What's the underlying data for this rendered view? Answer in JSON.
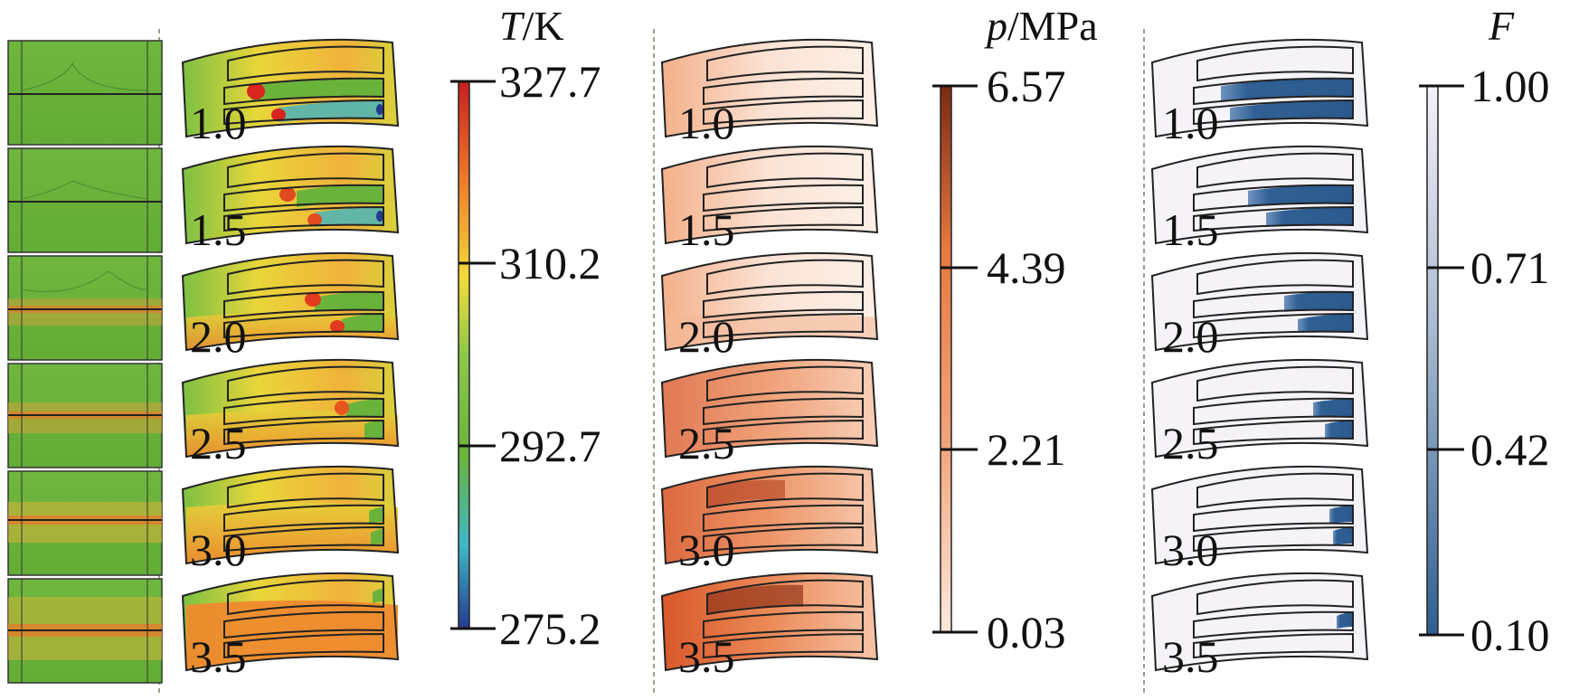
{
  "figure": {
    "divider_color": "#8a7a6a",
    "left_strip": {
      "name": "cross-section temperature contours",
      "count": 6,
      "field_color": "#6ab33a",
      "band_color": "#d9822b"
    },
    "temperature": {
      "title_var": "T",
      "title_unit": "/K",
      "ticks": [
        "327.7",
        "310.2",
        "292.7",
        "275.2"
      ],
      "colors": [
        "#c81e1e",
        "#ee7a2a",
        "#f2dc3a",
        "#6ab33a",
        "#3fb6c6",
        "#243a8e"
      ],
      "panel_labels": [
        "1.0",
        "1.5",
        "2.0",
        "2.5",
        "3.0",
        "3.5"
      ]
    },
    "pressure": {
      "title_var": "p",
      "title_unit": "/MPa",
      "ticks": [
        "6.57",
        "4.39",
        "2.21",
        "0.03"
      ],
      "colors": [
        "#7b2a14",
        "#e7783f",
        "#fde9dc"
      ],
      "panel_labels": [
        "1.0",
        "1.5",
        "2.0",
        "2.5",
        "3.0",
        "3.5"
      ]
    },
    "fraction": {
      "title_var": "F",
      "title_unit": "",
      "ticks": [
        "1.00",
        "0.71",
        "0.42",
        "0.10"
      ],
      "colors": [
        "#f4f1f8",
        "#8ea7c6",
        "#2e5f92"
      ],
      "panel_labels": [
        "1.0",
        "1.5",
        "2.0",
        "2.5",
        "3.0",
        "3.5"
      ]
    }
  }
}
